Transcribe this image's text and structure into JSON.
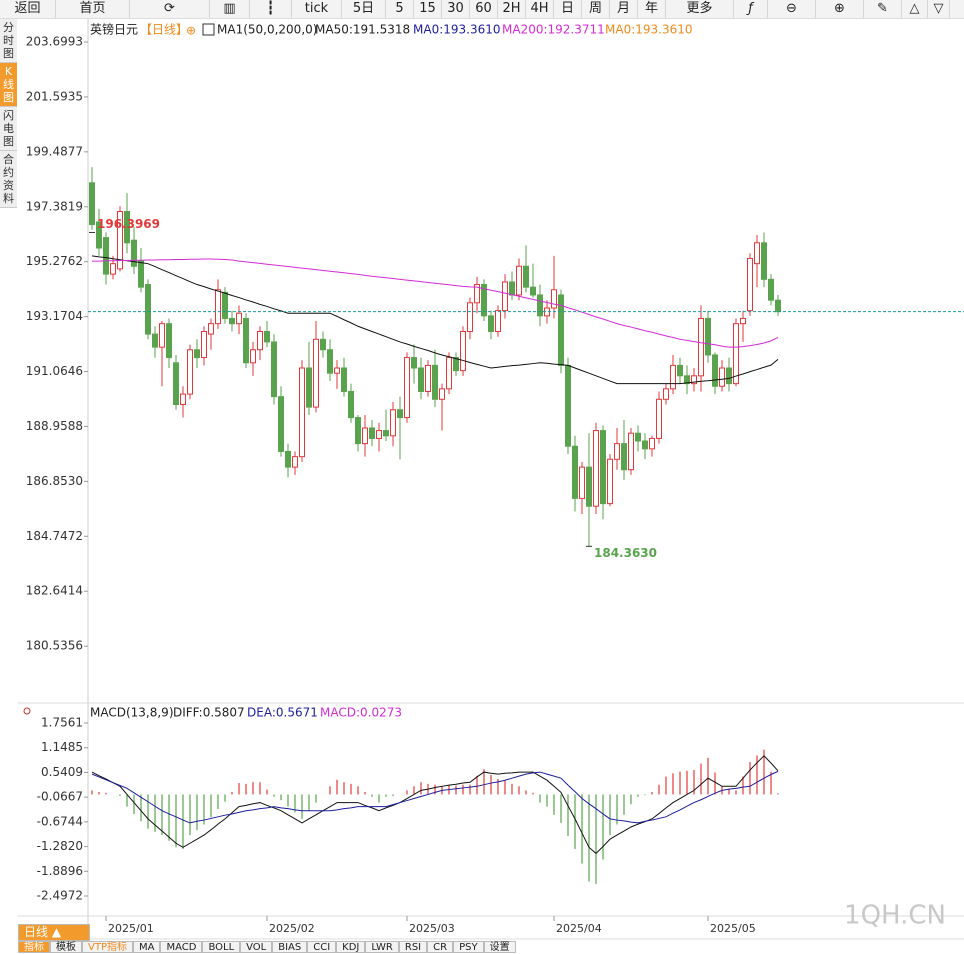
{
  "toolbar": {
    "items": [
      "返回",
      "首页",
      "tick",
      "5日",
      "5",
      "15",
      "30",
      "60",
      "2H",
      "4H",
      "日",
      "周",
      "月",
      "年",
      "更多"
    ]
  },
  "sidebar": {
    "tabs": [
      "分时图",
      "K线图",
      "闪电图",
      "合约资料"
    ]
  },
  "chart_data": {
    "type": "candlestick",
    "symbol": "英镑日元",
    "period": "【日线】",
    "add": "⊕",
    "legend": [
      "MA1(50,0,200,0)",
      "MA50:191.5318",
      "MA0:193.3610",
      "MA200:192.3711",
      "MA0:193.3610"
    ],
    "categories": [
      null,
      null,
      "2025/01",
      null,
      null,
      null,
      null,
      null,
      null,
      null,
      null,
      null,
      null,
      null,
      null,
      null,
      null,
      null,
      null,
      null,
      null,
      null,
      null,
      null,
      null,
      "2025/02",
      null,
      null,
      null,
      null,
      null,
      null,
      null,
      null,
      null,
      null,
      null,
      null,
      null,
      null,
      null,
      null,
      null,
      null,
      null,
      "2025/03",
      null,
      null,
      null,
      null,
      null,
      null,
      null,
      null,
      null,
      null,
      null,
      null,
      null,
      null,
      null,
      null,
      null,
      null,
      null,
      null,
      "2025/04",
      null,
      null,
      null,
      null,
      null,
      null,
      null,
      null,
      null,
      null,
      null,
      null,
      null,
      null,
      null,
      null,
      null,
      null,
      null,
      null,
      null,
      "2025/05",
      null,
      null,
      null,
      null,
      null,
      null,
      null,
      null,
      null,
      null
    ],
    "ohlc": [
      [
        198.3,
        198.9,
        196.5,
        196.7
      ],
      [
        196.8,
        197.3,
        195.5,
        195.8
      ],
      [
        196.2,
        196.4,
        194.4,
        194.8
      ],
      [
        194.8,
        195.5,
        194.6,
        195.2
      ],
      [
        195.0,
        197.4,
        194.9,
        197.2
      ],
      [
        197.2,
        197.9,
        195.6,
        196.0
      ],
      [
        196.1,
        196.6,
        194.8,
        195.1
      ],
      [
        195.3,
        195.8,
        194.1,
        194.3
      ],
      [
        194.4,
        194.6,
        192.3,
        192.5
      ],
      [
        192.5,
        192.8,
        191.6,
        192.0
      ],
      [
        192.0,
        193.0,
        190.5,
        192.9
      ],
      [
        192.9,
        193.1,
        191.2,
        191.6
      ],
      [
        191.4,
        191.7,
        189.6,
        189.8
      ],
      [
        189.8,
        190.5,
        189.3,
        190.2
      ],
      [
        190.2,
        192.1,
        190.0,
        191.9
      ],
      [
        191.9,
        192.3,
        191.2,
        191.6
      ],
      [
        191.6,
        192.8,
        191.3,
        192.6
      ],
      [
        192.5,
        193.1,
        191.9,
        192.9
      ],
      [
        192.9,
        194.6,
        192.7,
        194.2
      ],
      [
        194.1,
        194.3,
        192.9,
        193.1
      ],
      [
        193.1,
        193.4,
        192.6,
        192.9
      ],
      [
        192.9,
        193.6,
        192.5,
        193.3
      ],
      [
        193.1,
        193.3,
        191.2,
        191.4
      ],
      [
        191.4,
        192.2,
        190.9,
        191.9
      ],
      [
        191.9,
        192.8,
        191.5,
        192.6
      ],
      [
        192.6,
        193.0,
        192.0,
        192.2
      ],
      [
        192.2,
        192.5,
        189.8,
        190.1
      ],
      [
        190.1,
        190.5,
        187.8,
        188.0
      ],
      [
        188.0,
        188.3,
        187.0,
        187.4
      ],
      [
        187.4,
        188.0,
        187.1,
        187.8
      ],
      [
        187.8,
        191.5,
        187.6,
        191.2
      ],
      [
        191.2,
        192.2,
        189.4,
        189.7
      ],
      [
        189.7,
        193.0,
        189.5,
        192.3
      ],
      [
        192.3,
        192.6,
        191.6,
        191.9
      ],
      [
        191.9,
        192.3,
        190.7,
        191.0
      ],
      [
        191.0,
        191.5,
        190.4,
        191.2
      ],
      [
        191.2,
        191.6,
        190.1,
        190.3
      ],
      [
        190.3,
        190.6,
        189.1,
        189.3
      ],
      [
        189.3,
        189.4,
        188.0,
        188.3
      ],
      [
        188.3,
        189.4,
        187.8,
        188.9
      ],
      [
        188.9,
        189.2,
        188.2,
        188.5
      ],
      [
        188.5,
        189.1,
        188.0,
        188.8
      ],
      [
        188.8,
        189.6,
        188.4,
        188.6
      ],
      [
        188.6,
        189.9,
        188.2,
        189.6
      ],
      [
        189.6,
        190.1,
        187.7,
        189.3
      ],
      [
        189.3,
        191.8,
        189.1,
        191.6
      ],
      [
        191.6,
        192.1,
        190.6,
        191.2
      ],
      [
        191.2,
        191.6,
        190.0,
        190.3
      ],
      [
        190.3,
        191.5,
        190.1,
        191.3
      ],
      [
        191.3,
        191.9,
        189.7,
        190.0
      ],
      [
        190.0,
        190.6,
        188.8,
        190.4
      ],
      [
        190.4,
        191.8,
        190.2,
        191.6
      ],
      [
        191.6,
        191.8,
        190.9,
        191.1
      ],
      [
        191.1,
        192.8,
        190.9,
        192.6
      ],
      [
        192.6,
        193.9,
        192.3,
        193.7
      ],
      [
        193.7,
        194.7,
        193.3,
        194.4
      ],
      [
        194.4,
        194.6,
        193.0,
        193.2
      ],
      [
        193.2,
        193.4,
        192.3,
        192.6
      ],
      [
        192.6,
        193.6,
        192.4,
        193.4
      ],
      [
        193.4,
        194.8,
        193.1,
        194.5
      ],
      [
        194.5,
        194.9,
        193.8,
        194.0
      ],
      [
        194.0,
        195.4,
        193.8,
        195.1
      ],
      [
        195.1,
        195.9,
        194.1,
        194.3
      ],
      [
        194.3,
        195.2,
        193.9,
        194.0
      ],
      [
        194.0,
        194.4,
        192.8,
        193.2
      ],
      [
        193.2,
        193.8,
        192.9,
        193.5
      ],
      [
        193.5,
        195.5,
        193.1,
        194.2
      ],
      [
        194.0,
        194.2,
        191.0,
        191.3
      ],
      [
        191.3,
        191.6,
        187.9,
        188.2
      ],
      [
        188.2,
        188.6,
        185.7,
        186.2
      ],
      [
        186.2,
        187.6,
        185.6,
        187.4
      ],
      [
        187.4,
        188.7,
        184.363,
        185.9
      ],
      [
        185.9,
        189.1,
        185.6,
        188.8
      ],
      [
        188.8,
        189.0,
        185.4,
        186.0
      ],
      [
        186.0,
        187.9,
        185.9,
        187.7
      ],
      [
        187.7,
        188.9,
        187.3,
        188.3
      ],
      [
        188.3,
        189.2,
        186.9,
        187.3
      ],
      [
        187.3,
        188.9,
        187.1,
        188.7
      ],
      [
        188.7,
        189.0,
        188.0,
        188.4
      ],
      [
        188.4,
        188.7,
        187.7,
        188.1
      ],
      [
        188.1,
        188.6,
        187.8,
        188.5
      ],
      [
        188.5,
        190.3,
        188.3,
        190.0
      ],
      [
        190.0,
        190.6,
        189.8,
        190.4
      ],
      [
        190.4,
        191.7,
        190.2,
        191.3
      ],
      [
        191.3,
        191.6,
        190.6,
        190.9
      ],
      [
        190.9,
        191.3,
        190.2,
        190.6
      ],
      [
        190.6,
        191.2,
        190.3,
        190.9
      ],
      [
        190.9,
        193.6,
        190.3,
        193.1
      ],
      [
        193.1,
        193.4,
        191.4,
        191.7
      ],
      [
        191.7,
        191.8,
        190.2,
        190.5
      ],
      [
        190.5,
        191.5,
        190.3,
        191.2
      ],
      [
        191.2,
        191.6,
        190.3,
        190.6
      ],
      [
        190.6,
        193.1,
        190.5,
        192.9
      ],
      [
        192.9,
        193.4,
        192.2,
        193.1
      ],
      [
        193.4,
        195.6,
        193.2,
        195.4
      ],
      [
        195.2,
        196.3,
        194.3,
        196.0
      ],
      [
        196.0,
        196.3969,
        194.3,
        194.6
      ],
      [
        194.6,
        194.8,
        193.6,
        193.8
      ],
      [
        193.8,
        194.0,
        193.2,
        193.361
      ]
    ],
    "up_color": "#e2383a",
    "down_color": "#5aa34e",
    "series": [
      {
        "name": "MA50",
        "color": "#111111",
        "values": [
          195.5,
          195.46,
          195.43,
          195.39,
          195.35,
          195.31,
          195.28,
          195.24,
          195.2,
          195.09,
          194.97,
          194.86,
          194.74,
          194.63,
          194.51,
          194.4,
          194.32,
          194.23,
          194.15,
          194.07,
          193.98,
          193.9,
          193.81,
          193.73,
          193.64,
          193.56,
          193.47,
          193.39,
          193.3,
          193.3,
          193.3,
          193.3,
          193.3,
          193.3,
          193.3,
          193.18,
          193.05,
          192.93,
          192.8,
          192.7,
          192.6,
          192.5,
          192.4,
          192.3,
          192.2,
          192.12,
          192.03,
          191.95,
          191.87,
          191.78,
          191.7,
          191.63,
          191.56,
          191.49,
          191.41,
          191.34,
          191.27,
          191.2,
          191.23,
          191.26,
          191.29,
          191.31,
          191.34,
          191.37,
          191.4,
          191.38,
          191.35,
          191.33,
          191.3,
          191.2,
          191.1,
          191.0,
          190.9,
          190.8,
          190.7,
          190.6,
          190.6,
          190.6,
          190.6,
          190.6,
          190.6,
          190.6,
          190.6,
          190.6,
          190.6,
          190.63,
          190.66,
          190.69,
          190.71,
          190.74,
          190.77,
          190.8,
          190.89,
          190.97,
          191.06,
          191.14,
          191.23,
          191.31,
          191.5318
        ]
      },
      {
        "name": "MA200",
        "color": "#d42bd4",
        "values": [
          195.3,
          195.3,
          195.31,
          195.31,
          195.32,
          195.32,
          195.33,
          195.33,
          195.34,
          195.34,
          195.35,
          195.35,
          195.36,
          195.36,
          195.37,
          195.37,
          195.38,
          195.38,
          195.37,
          195.36,
          195.34,
          195.3,
          195.27,
          195.24,
          195.21,
          195.18,
          195.15,
          195.12,
          195.09,
          195.06,
          195.03,
          195.0,
          194.97,
          194.94,
          194.91,
          194.88,
          194.85,
          194.82,
          194.79,
          194.75,
          194.72,
          194.69,
          194.66,
          194.63,
          194.6,
          194.57,
          194.54,
          194.51,
          194.48,
          194.45,
          194.42,
          194.39,
          194.36,
          194.33,
          194.31,
          194.3,
          194.24,
          194.18,
          194.13,
          194.07,
          194.01,
          193.95,
          193.89,
          193.83,
          193.77,
          193.71,
          193.65,
          193.6,
          193.51,
          193.43,
          193.34,
          193.25,
          193.16,
          193.08,
          192.99,
          192.9,
          192.83,
          192.77,
          192.7,
          192.63,
          192.57,
          192.5,
          192.43,
          192.37,
          192.3,
          192.26,
          192.21,
          192.17,
          192.13,
          192.09,
          192.04,
          192.0,
          192.0,
          192.02,
          192.06,
          192.1,
          192.16,
          192.24,
          192.3711
        ]
      }
    ],
    "price_line": 193.361,
    "price_line_color": "#1a9a9a",
    "high_label": 196.3969,
    "low_label": {
      "value": 184.363,
      "label": "184.3630"
    },
    "ylim": [
      178.47,
      204.62
    ],
    "yticks": [
      203.6993,
      201.5935,
      199.4877,
      197.3819,
      195.2762,
      193.1704,
      191.0646,
      188.9588,
      {
        "value": 186.853,
        "label": "186.8530"
      },
      184.7472,
      182.6414,
      180.5356
    ],
    "grid": false
  },
  "macd": {
    "type": "macd",
    "legend": [
      "MACD(13,8,9)",
      "DIFF:0.5807",
      "DEA:0.5671",
      "MACD:0.0273"
    ],
    "series": [
      {
        "name": "DIFF",
        "color": "#111111",
        "values": [
          0.55,
          0.46,
          0.38,
          0.29,
          0.2,
          0.0,
          -0.2,
          -0.4,
          -0.6,
          -0.75,
          -0.9,
          -1.05,
          -1.2,
          -1.3,
          -1.2,
          -1.1,
          -1.0,
          -0.87,
          -0.73,
          -0.6,
          -0.45,
          -0.3,
          -0.27,
          -0.23,
          -0.2,
          -0.27,
          -0.33,
          -0.4,
          -0.5,
          -0.6,
          -0.7,
          -0.6,
          -0.5,
          -0.4,
          -0.3,
          -0.2,
          -0.2,
          -0.2,
          -0.2,
          -0.27,
          -0.33,
          -0.4,
          -0.33,
          -0.27,
          -0.2,
          -0.1,
          0.0,
          0.1,
          0.13,
          0.17,
          0.2,
          0.23,
          0.25,
          0.28,
          0.3,
          0.43,
          0.55,
          0.52,
          0.5,
          0.52,
          0.53,
          0.55,
          0.55,
          0.55,
          0.45,
          0.35,
          0.2,
          0.05,
          -0.28,
          -0.6,
          -0.95,
          -1.3,
          -1.45,
          -1.28,
          -1.1,
          -1.0,
          -0.9,
          -0.8,
          -0.73,
          -0.67,
          -0.6,
          -0.47,
          -0.33,
          -0.2,
          -0.1,
          0.0,
          0.1,
          0.25,
          0.4,
          0.3,
          0.2,
          0.2,
          0.2,
          0.4,
          0.6,
          0.78,
          0.95,
          0.77,
          0.5807
        ]
      },
      {
        "name": "DEA",
        "color": "#1d1d9e",
        "values": [
          0.5,
          0.43,
          0.36,
          0.29,
          0.22,
          0.15,
          0.04,
          -0.07,
          -0.18,
          -0.29,
          -0.4,
          -0.48,
          -0.55,
          -0.63,
          -0.7,
          -0.66,
          -0.63,
          -0.59,
          -0.55,
          -0.51,
          -0.48,
          -0.44,
          -0.4,
          -0.38,
          -0.35,
          -0.33,
          -0.3,
          -0.33,
          -0.35,
          -0.38,
          -0.4,
          -0.4,
          -0.4,
          -0.4,
          -0.4,
          -0.38,
          -0.35,
          -0.33,
          -0.3,
          -0.3,
          -0.3,
          -0.3,
          -0.3,
          -0.25,
          -0.2,
          -0.15,
          -0.1,
          -0.05,
          0.0,
          0.05,
          0.1,
          0.12,
          0.14,
          0.16,
          0.18,
          0.2,
          0.24,
          0.28,
          0.31,
          0.35,
          0.4,
          0.45,
          0.5,
          0.53,
          0.55,
          0.5,
          0.45,
          0.4,
          0.23,
          0.07,
          -0.1,
          -0.23,
          -0.35,
          -0.48,
          -0.6,
          -0.63,
          -0.65,
          -0.68,
          -0.7,
          -0.66,
          -0.63,
          -0.59,
          -0.55,
          -0.46,
          -0.38,
          -0.29,
          -0.2,
          -0.13,
          -0.05,
          0.03,
          0.1,
          0.13,
          0.15,
          0.18,
          0.2,
          0.3,
          0.4,
          0.49,
          0.5671
        ]
      }
    ],
    "histogram": {
      "name": "MACD",
      "values": [
        0.1,
        0.06,
        0.04,
        0.0,
        -0.04,
        -0.3,
        -0.48,
        -0.66,
        -0.84,
        -0.92,
        -1.0,
        -1.14,
        -1.3,
        -1.34,
        -1.0,
        -0.88,
        -0.74,
        -0.56,
        -0.36,
        -0.18,
        0.06,
        0.28,
        0.26,
        0.3,
        0.3,
        0.12,
        -0.06,
        -0.14,
        -0.3,
        -0.44,
        -0.6,
        -0.4,
        -0.2,
        0.0,
        0.2,
        0.36,
        0.3,
        0.26,
        0.2,
        0.06,
        -0.06,
        -0.2,
        -0.06,
        -0.04,
        0.0,
        0.1,
        0.2,
        0.3,
        0.26,
        0.24,
        0.2,
        0.22,
        0.22,
        0.24,
        0.24,
        0.46,
        0.62,
        0.48,
        0.38,
        0.34,
        0.26,
        0.2,
        0.1,
        0.04,
        -0.2,
        -0.3,
        -0.5,
        -0.7,
        -1.02,
        -1.34,
        -1.7,
        -2.14,
        -2.2,
        -1.6,
        -1.0,
        -0.74,
        -0.5,
        -0.24,
        -0.06,
        -0.02,
        0.06,
        0.24,
        0.44,
        0.52,
        0.56,
        0.58,
        0.6,
        0.76,
        0.9,
        0.54,
        0.2,
        0.14,
        0.1,
        0.44,
        0.8,
        0.96,
        1.1,
        0.56,
        0.0273
      ],
      "up_color": "#e2383a",
      "down_color": "#5aa34e"
    },
    "ylim": [
      -2.964,
      2.199
    ],
    "yticks": [
      1.7561,
      1.1485,
      0.5409,
      -0.0667,
      -0.6744,
      {
        "value": -1.282,
        "label": "-1.2820"
      },
      -1.8896,
      -2.4972
    ]
  },
  "footer": {
    "period": "日线 ▲",
    "tabs": [
      "指标",
      "模板",
      "VTP指标",
      "MA",
      "MACD",
      "BOLL",
      "VOL",
      "BIAS",
      "CCI",
      "KDJ",
      "LWR",
      "RSI",
      "CR",
      "PSY",
      "设置"
    ],
    "watermark": "1QH.CN"
  }
}
